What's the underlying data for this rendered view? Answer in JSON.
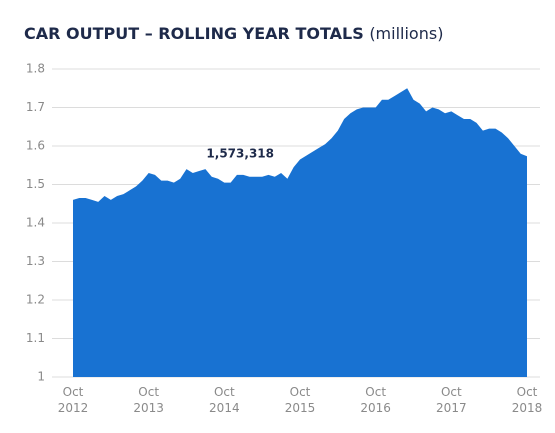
{
  "chart_data": {
    "type": "area",
    "title": "CAR OUTPUT – ROLLING YEAR TOTALS",
    "subtitle": "(millions)",
    "annotation": "1,573,318",
    "color": "#1872d2",
    "grid": true,
    "ylim": [
      1,
      1.8
    ],
    "yticks": [
      1,
      1.1,
      1.2,
      1.3,
      1.4,
      1.5,
      1.6,
      1.7,
      1.8
    ],
    "categories": [
      "Oct 2012",
      null,
      null,
      null,
      null,
      null,
      null,
      null,
      null,
      null,
      null,
      null,
      "Oct 2013",
      null,
      null,
      null,
      null,
      null,
      null,
      null,
      null,
      null,
      null,
      null,
      "Oct 2014",
      null,
      null,
      null,
      null,
      null,
      null,
      null,
      null,
      null,
      null,
      null,
      "Oct 2015",
      null,
      null,
      null,
      null,
      null,
      null,
      null,
      null,
      null,
      null,
      null,
      "Oct 2016",
      null,
      null,
      null,
      null,
      null,
      null,
      null,
      null,
      null,
      null,
      null,
      "Oct 2017",
      null,
      null,
      null,
      null,
      null,
      null,
      null,
      null,
      null,
      null,
      null,
      "Oct 2018"
    ],
    "values": [
      1.46,
      1.465,
      1.465,
      1.46,
      1.455,
      1.47,
      1.46,
      1.47,
      1.475,
      1.485,
      1.495,
      1.51,
      1.53,
      1.525,
      1.51,
      1.51,
      1.505,
      1.515,
      1.54,
      1.53,
      1.535,
      1.54,
      1.52,
      1.515,
      1.505,
      1.505,
      1.525,
      1.525,
      1.52,
      1.52,
      1.52,
      1.525,
      1.52,
      1.53,
      1.515,
      1.545,
      1.565,
      1.575,
      1.585,
      1.595,
      1.605,
      1.62,
      1.64,
      1.67,
      1.685,
      1.695,
      1.7,
      1.7,
      1.7,
      1.72,
      1.72,
      1.73,
      1.74,
      1.75,
      1.72,
      1.71,
      1.69,
      1.7,
      1.695,
      1.685,
      1.69,
      1.68,
      1.67,
      1.67,
      1.66,
      1.64,
      1.645,
      1.645,
      1.635,
      1.62,
      1.6,
      1.58,
      1.573318
    ]
  }
}
